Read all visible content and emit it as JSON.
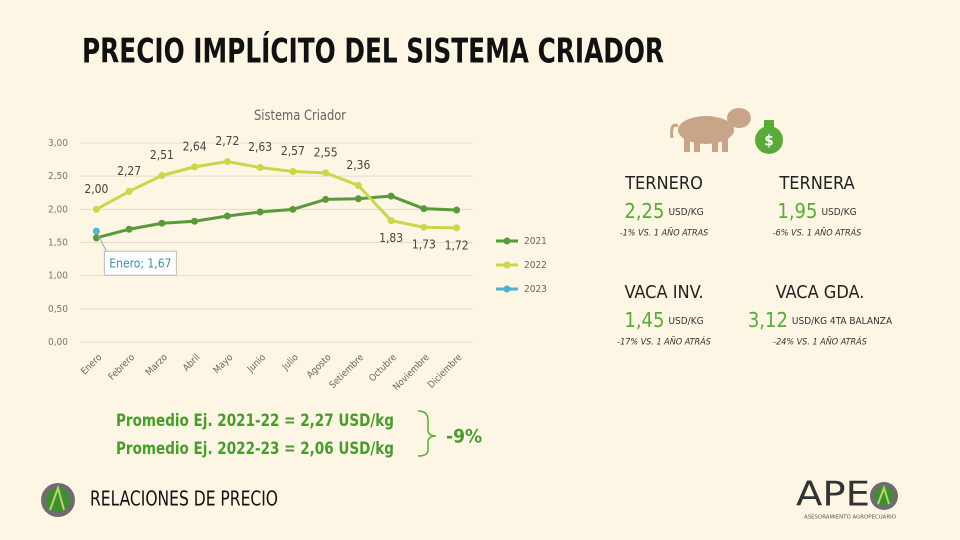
{
  "title": "PRECIO IMPLÍCITO DEL SISTEMA CRIADOR",
  "chart_data": {
    "type": "line",
    "title": "Sistema Criador",
    "categories": [
      "Enero",
      "Febrero",
      "Marzo",
      "Abril",
      "Mayo",
      "Junio",
      "Julio",
      "Agosto",
      "Setiembre",
      "Octubre",
      "Noviembre",
      "Diciembre"
    ],
    "series": [
      {
        "name": "2021",
        "color": "#5a9a3c",
        "values": [
          1.57,
          1.7,
          1.79,
          1.82,
          1.9,
          1.96,
          2.0,
          2.15,
          2.16,
          2.2,
          2.01,
          1.99
        ]
      },
      {
        "name": "2022",
        "color": "#c9d84a",
        "values": [
          2.0,
          2.27,
          2.51,
          2.64,
          2.72,
          2.63,
          2.57,
          2.55,
          2.36,
          1.83,
          1.73,
          1.72
        ],
        "value_labels": [
          "2,00",
          "2,27",
          "2,51",
          "2,64",
          "2,72",
          "2,63",
          "2,57",
          "2,55",
          "2,36",
          "1,83",
          "1,73",
          "1,72"
        ]
      },
      {
        "name": "2023",
        "color": "#4fb3cf",
        "values": [
          1.67,
          null,
          null,
          null,
          null,
          null,
          null,
          null,
          null,
          null,
          null,
          null
        ]
      }
    ],
    "annotation": "Enero; 1,67",
    "ylim": [
      0,
      3
    ],
    "yticks": [
      {
        "value": 0,
        "label": "0,00"
      },
      {
        "value": 0.5,
        "label": "0,50"
      },
      {
        "value": 1,
        "label": "1,00"
      },
      {
        "value": 1.5,
        "label": "1,50"
      },
      {
        "value": 2,
        "label": "2,00"
      },
      {
        "value": 2.5,
        "label": "2,50"
      },
      {
        "value": 3,
        "label": "3,00"
      }
    ],
    "legend": "right"
  },
  "cards": [
    {
      "name": "TERNERO",
      "value": "2,25",
      "unit": "USD/KG",
      "note": "-1% VS. 1 AÑO ATRAS"
    },
    {
      "name": "TERNERA",
      "value": "1,95",
      "unit": "USD/KG",
      "note": "-6% VS. 1 AÑO ATRÁS"
    },
    {
      "name": "VACA INV.",
      "value": "1,45",
      "unit": "USD/KG",
      "note": "-17% VS. 1 AÑO ATRÁS"
    },
    {
      "name": "VACA GDA.",
      "value": "3,12",
      "unit": "USD/KG 4TA BALANZA",
      "note": "-24% VS. 1 AÑO ATRÁS"
    }
  ],
  "averages": [
    "Promedio Ej. 2021-22 = 2,27 USD/kg",
    "Promedio Ej. 2022-23 = 2,06 USD/kg"
  ],
  "change": "-9%",
  "footer": "RELACIONES DE PRECIO",
  "logo": {
    "name": "APE",
    "tagline": "ASESORAMIENTO AGROPECUARIO"
  }
}
